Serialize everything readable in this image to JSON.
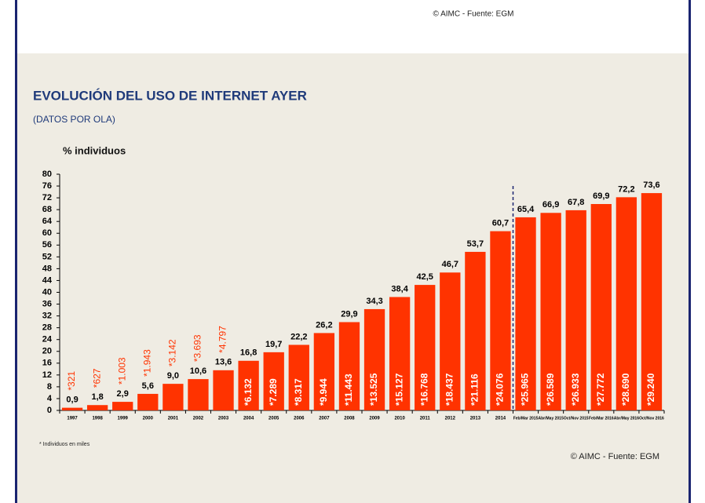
{
  "source_top": "© AIMC - Fuente: EGM",
  "chart_data": {
    "type": "bar",
    "title": "EVOLUCIÓN DEL USO DE INTERNET AYER",
    "subtitle": "(DATOS POR OLA)",
    "y_label": "% individuos",
    "categories": [
      "1997",
      "1998",
      "1999",
      "2000",
      "2001",
      "2002",
      "2003",
      "2004",
      "2005",
      "2006",
      "2007",
      "2008",
      "2009",
      "2010",
      "2011",
      "2012",
      "2013",
      "2014",
      "Feb/Mar 2015",
      "Abr/May 2015",
      "Oct/Nov 2015",
      "Feb/Mar 2016",
      "Abr/May 2016",
      "Oct/Nov 2016"
    ],
    "values": [
      0.9,
      1.8,
      2.9,
      5.6,
      9.0,
      10.6,
      13.6,
      16.8,
      19.7,
      22.2,
      26.2,
      29.9,
      34.3,
      38.4,
      42.5,
      46.7,
      53.7,
      60.7,
      65.4,
      66.9,
      67.8,
      69.9,
      72.2,
      73.6
    ],
    "value_labels": [
      "0,9",
      "1,8",
      "2,9",
      "5,6",
      "9,0",
      "10,6",
      "13,6",
      "16,8",
      "19,7",
      "22,2",
      "26,2",
      "29,9",
      "34,3",
      "38,4",
      "42,5",
      "46,7",
      "53,7",
      "60,7",
      "65,4",
      "66,9",
      "67,8",
      "69,9",
      "72,2",
      "73,6"
    ],
    "color": "#ff3300",
    "individuals": {
      "values": [
        321,
        627,
        1003,
        1943,
        3142,
        3693,
        4797,
        6132,
        7289,
        8317,
        9944,
        11443,
        13525,
        15127,
        16768,
        18437,
        21116,
        24076,
        25965,
        26589,
        26933,
        27772,
        28690,
        29240
      ],
      "value_labels": [
        "*321",
        "*627",
        "*1.003",
        "*1.943",
        "*3.142",
        "*3.693",
        "*4.797",
        "*6.132",
        "*7.289",
        "*8.317",
        "*9.944",
        "*11.443",
        "*13.525",
        "*15.127",
        "*16.768",
        "*18.437",
        "*21.116",
        "*24.076",
        "*25.965",
        "*26.589",
        "*26.933",
        "*27.772",
        "*28.690",
        "*29.240"
      ]
    },
    "ylim": [
      0,
      80
    ],
    "yticks": [
      0,
      4,
      8,
      12,
      16,
      20,
      24,
      28,
      32,
      36,
      40,
      44,
      48,
      52,
      56,
      60,
      64,
      68,
      72,
      76,
      80
    ],
    "grid": false,
    "footnote": "* Individuos en miles",
    "source": "© AIMC - Fuente: EGM"
  }
}
